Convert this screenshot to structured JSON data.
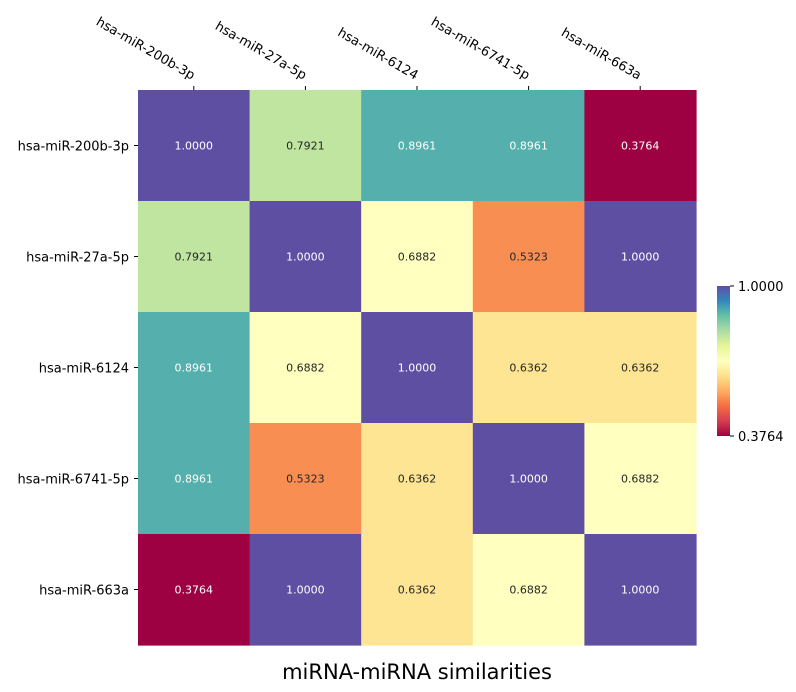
{
  "chart_data": {
    "type": "heatmap",
    "title": "miRNA-miRNA similarities",
    "x_labels": [
      "hsa-miR-200b-3p",
      "hsa-miR-27a-5p",
      "hsa-miR-6124",
      "hsa-miR-6741-5p",
      "hsa-miR-663a"
    ],
    "y_labels": [
      "hsa-miR-200b-3p",
      "hsa-miR-27a-5p",
      "hsa-miR-6124",
      "hsa-miR-6741-5p",
      "hsa-miR-663a"
    ],
    "values": [
      [
        1.0,
        0.7921,
        0.8961,
        0.8961,
        0.3764
      ],
      [
        0.7921,
        1.0,
        0.6882,
        0.5323,
        1.0
      ],
      [
        0.8961,
        0.6882,
        1.0,
        0.6362,
        0.6362
      ],
      [
        0.8961,
        0.5323,
        0.6362,
        1.0,
        0.6882
      ],
      [
        0.3764,
        1.0,
        0.6362,
        0.6882,
        1.0
      ]
    ],
    "cell_text": [
      [
        "1.0000",
        "0.7921",
        "0.8961",
        "0.8961",
        "0.3764"
      ],
      [
        "0.7921",
        "1.0000",
        "0.6882",
        "0.5323",
        "1.0000"
      ],
      [
        "0.8961",
        "0.6882",
        "1.0000",
        "0.6362",
        "0.6362"
      ],
      [
        "0.8961",
        "0.5323",
        "0.6362",
        "1.0000",
        "0.6882"
      ],
      [
        "0.3764",
        "1.0000",
        "0.6362",
        "0.6882",
        "1.0000"
      ]
    ],
    "colormap": "Spectral",
    "vmin": 0.3764,
    "vmax": 1.0,
    "colorbar": {
      "ticks": [
        "1.0000",
        "0.3764"
      ],
      "position": "right"
    },
    "x_tick_position": "top"
  }
}
